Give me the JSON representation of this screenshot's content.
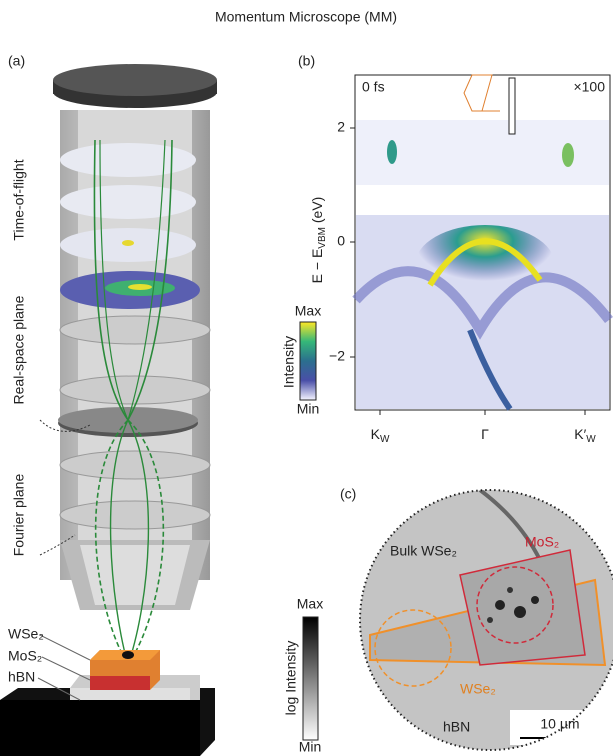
{
  "title": "Momentum Microscope (MM)",
  "panel_a": {
    "label": "(a)",
    "sections": [
      "Time-of-flight",
      "Real-space plane",
      "Fourier plane"
    ],
    "sample": [
      "WSe₂",
      "MoS₂",
      "hBN"
    ]
  },
  "panel_b": {
    "label": "(b)",
    "time": "0 fs",
    "scale": "×100",
    "ylabel": {
      "main": "E − E",
      "sub": "VBM",
      "unit": " (eV)"
    },
    "yticks": [
      "2",
      "0",
      "−2"
    ],
    "xticks": [
      {
        "main": "K",
        "sub": "W"
      },
      {
        "main": "Γ",
        "sub": ""
      },
      {
        "main": "K′",
        "sub": "W"
      }
    ],
    "colorbar": {
      "max": "Max",
      "label": "Intensity",
      "min": "Min"
    }
  },
  "panel_c": {
    "label": "(c)",
    "regions": [
      "Bulk WSe₂",
      "MoS₂",
      "WSe₂",
      "hBN"
    ],
    "scalebar": "10 µm",
    "colorbar": {
      "max": "Max",
      "label": "log Intensity",
      "min": "Min"
    }
  }
}
